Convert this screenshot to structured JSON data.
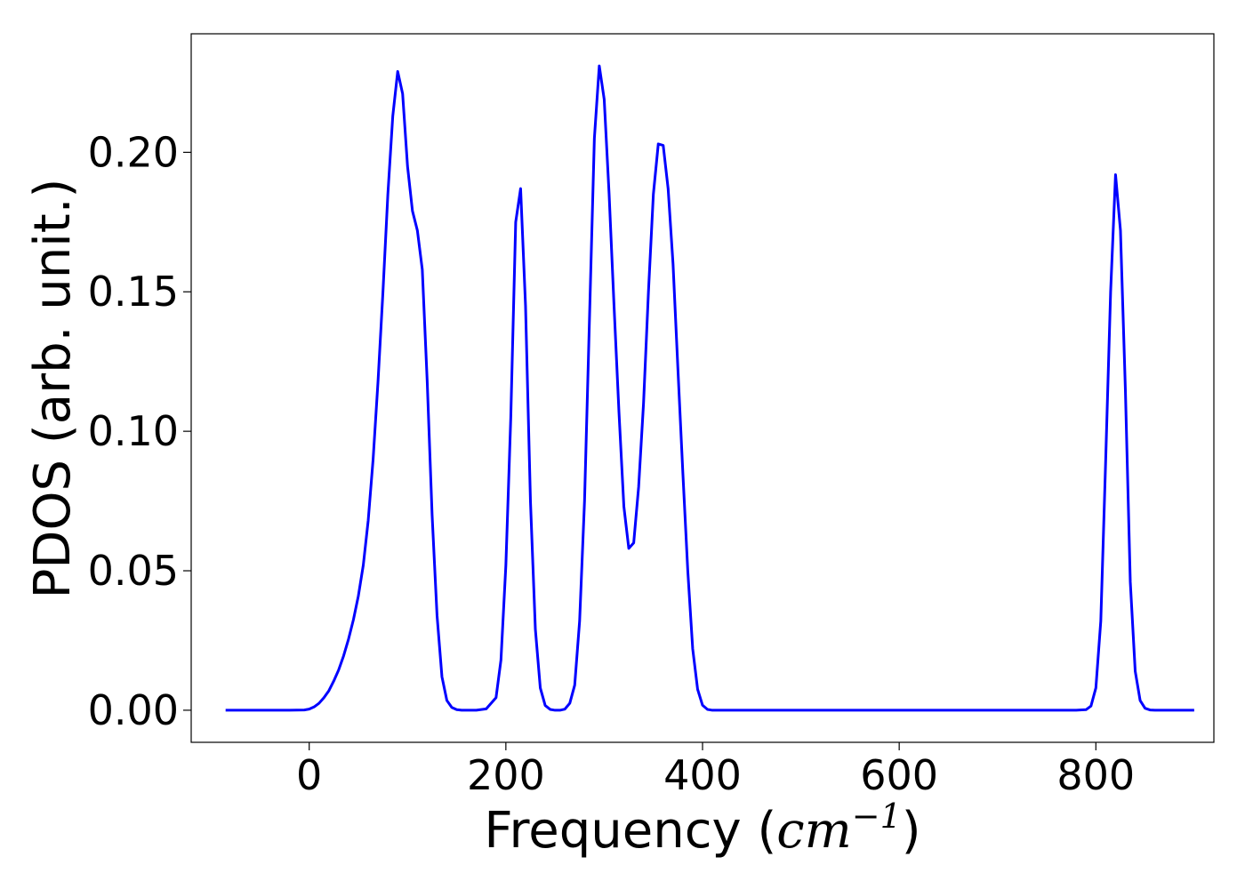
{
  "chart_data": {
    "type": "line",
    "title": "",
    "xlabel": {
      "prefix": "Frequency (",
      "unit_base": "cm",
      "unit_exp": "−1",
      "suffix": ")"
    },
    "ylabel": "PDOS (arb. unit.)",
    "xlim": [
      -120,
      920
    ],
    "ylim": [
      -0.0115,
      0.2425
    ],
    "x_ticks": [
      0,
      200,
      400,
      600,
      800
    ],
    "x_tick_labels": [
      "0",
      "200",
      "400",
      "600",
      "800"
    ],
    "y_ticks": [
      0.0,
      0.05,
      0.1,
      0.15,
      0.2
    ],
    "y_tick_labels": [
      "0.00",
      "0.05",
      "0.10",
      "0.15",
      "0.20"
    ],
    "grid": false,
    "legend": "none",
    "series": [
      {
        "color": "#0000ff",
        "x": [
          -85,
          -50,
          -20,
          -5,
          0,
          5,
          10,
          15,
          20,
          25,
          30,
          35,
          40,
          45,
          50,
          55,
          60,
          65,
          70,
          75,
          80,
          85,
          90,
          95,
          100,
          105,
          110,
          115,
          120,
          125,
          130,
          135,
          140,
          145,
          150,
          155,
          160,
          170,
          180,
          190,
          195,
          200,
          205,
          210,
          215,
          220,
          225,
          230,
          235,
          240,
          245,
          250,
          255,
          260,
          265,
          270,
          275,
          280,
          285,
          290,
          295,
          300,
          305,
          310,
          315,
          320,
          325,
          330,
          335,
          340,
          345,
          350,
          355,
          360,
          365,
          370,
          375,
          380,
          385,
          390,
          395,
          400,
          405,
          410,
          415,
          420,
          450,
          500,
          600,
          700,
          750,
          780,
          790,
          795,
          800,
          805,
          810,
          815,
          820,
          825,
          830,
          835,
          840,
          845,
          850,
          855,
          860,
          870,
          880,
          900
        ],
        "y": [
          0,
          0,
          0,
          0.0001,
          0.0004,
          0.0012,
          0.0025,
          0.0045,
          0.007,
          0.0105,
          0.0145,
          0.0195,
          0.0255,
          0.0325,
          0.041,
          0.052,
          0.068,
          0.09,
          0.118,
          0.15,
          0.185,
          0.213,
          0.229,
          0.221,
          0.195,
          0.179,
          0.172,
          0.158,
          0.118,
          0.07,
          0.034,
          0.012,
          0.0035,
          0.001,
          0.0002,
          0,
          0,
          0,
          0.0005,
          0.0045,
          0.018,
          0.052,
          0.105,
          0.175,
          0.187,
          0.145,
          0.075,
          0.029,
          0.008,
          0.0017,
          0.0003,
          0,
          0,
          0.0004,
          0.0025,
          0.009,
          0.032,
          0.075,
          0.14,
          0.205,
          0.231,
          0.219,
          0.185,
          0.145,
          0.107,
          0.073,
          0.058,
          0.06,
          0.08,
          0.11,
          0.15,
          0.185,
          0.203,
          0.2025,
          0.187,
          0.16,
          0.122,
          0.085,
          0.05,
          0.022,
          0.0075,
          0.0018,
          0.0003,
          0,
          0,
          0,
          0,
          0,
          0,
          0,
          0,
          0,
          0.0002,
          0.0015,
          0.008,
          0.032,
          0.09,
          0.15,
          0.192,
          0.172,
          0.115,
          0.046,
          0.014,
          0.0035,
          0.0007,
          0.0001,
          0,
          0,
          0,
          0
        ]
      }
    ]
  }
}
